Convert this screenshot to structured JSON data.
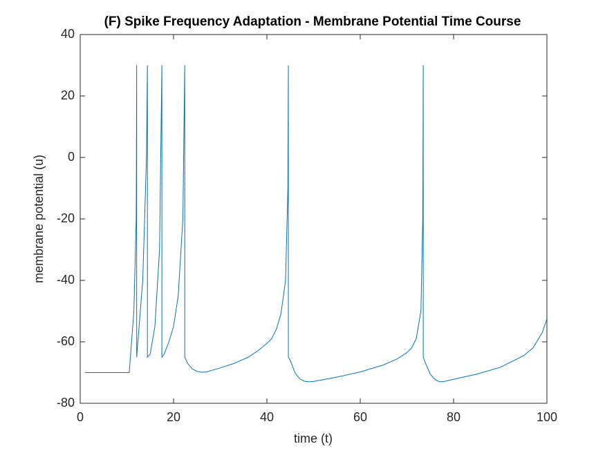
{
  "chart_data": {
    "type": "line",
    "title": "(F) Spike Frequency Adaptation  - Membrane Potential Time Course",
    "x_label": "time (t)",
    "y_label": "membrane potential (u)",
    "color": "#0072bd",
    "x": [
      1,
      10.5,
      11.5,
      12,
      12.1,
      12.1,
      13.4,
      14.2,
      14.4,
      14.4,
      15,
      16,
      17,
      17.5,
      17.5,
      18,
      19,
      20,
      21,
      22,
      22.4,
      22.4,
      23,
      24,
      25,
      26,
      27,
      30,
      33,
      36,
      38,
      40,
      41,
      42,
      43,
      44,
      44.5,
      44.6,
      44.6,
      45,
      46,
      47,
      48,
      49,
      50,
      55,
      60,
      65,
      68,
      70,
      71,
      72,
      73,
      73.4,
      73.5,
      73.5,
      74,
      75,
      76,
      77,
      78,
      80,
      85,
      90,
      95,
      97,
      99,
      100
    ],
    "values": [
      -70,
      -70,
      -50,
      -20,
      30,
      -65,
      -40,
      0,
      30,
      -65,
      -64,
      -55,
      -30,
      30,
      -65,
      -64,
      -60,
      -55,
      -45,
      -20,
      30,
      -65,
      -67,
      -68.8,
      -69.6,
      -69.9,
      -69.8,
      -68.5,
      -67,
      -65,
      -63,
      -60.5,
      -59,
      -56,
      -51,
      -40,
      -10,
      30,
      -65,
      -66,
      -70,
      -72,
      -72.8,
      -73,
      -72.9,
      -71.5,
      -69.8,
      -67.5,
      -65.5,
      -63.5,
      -62,
      -59,
      -50,
      -20,
      30,
      -65,
      -67,
      -70.5,
      -72.3,
      -73,
      -72.9,
      -72.2,
      -70.5,
      -68.3,
      -64.5,
      -62,
      -57,
      -52.5
    ],
    "xlim": [
      0,
      100
    ],
    "xticks": [
      0,
      20,
      40,
      60,
      80,
      100
    ],
    "ylim": [
      -80,
      40
    ],
    "yticks": [
      -80,
      -60,
      -40,
      -20,
      0,
      20,
      40
    ]
  }
}
